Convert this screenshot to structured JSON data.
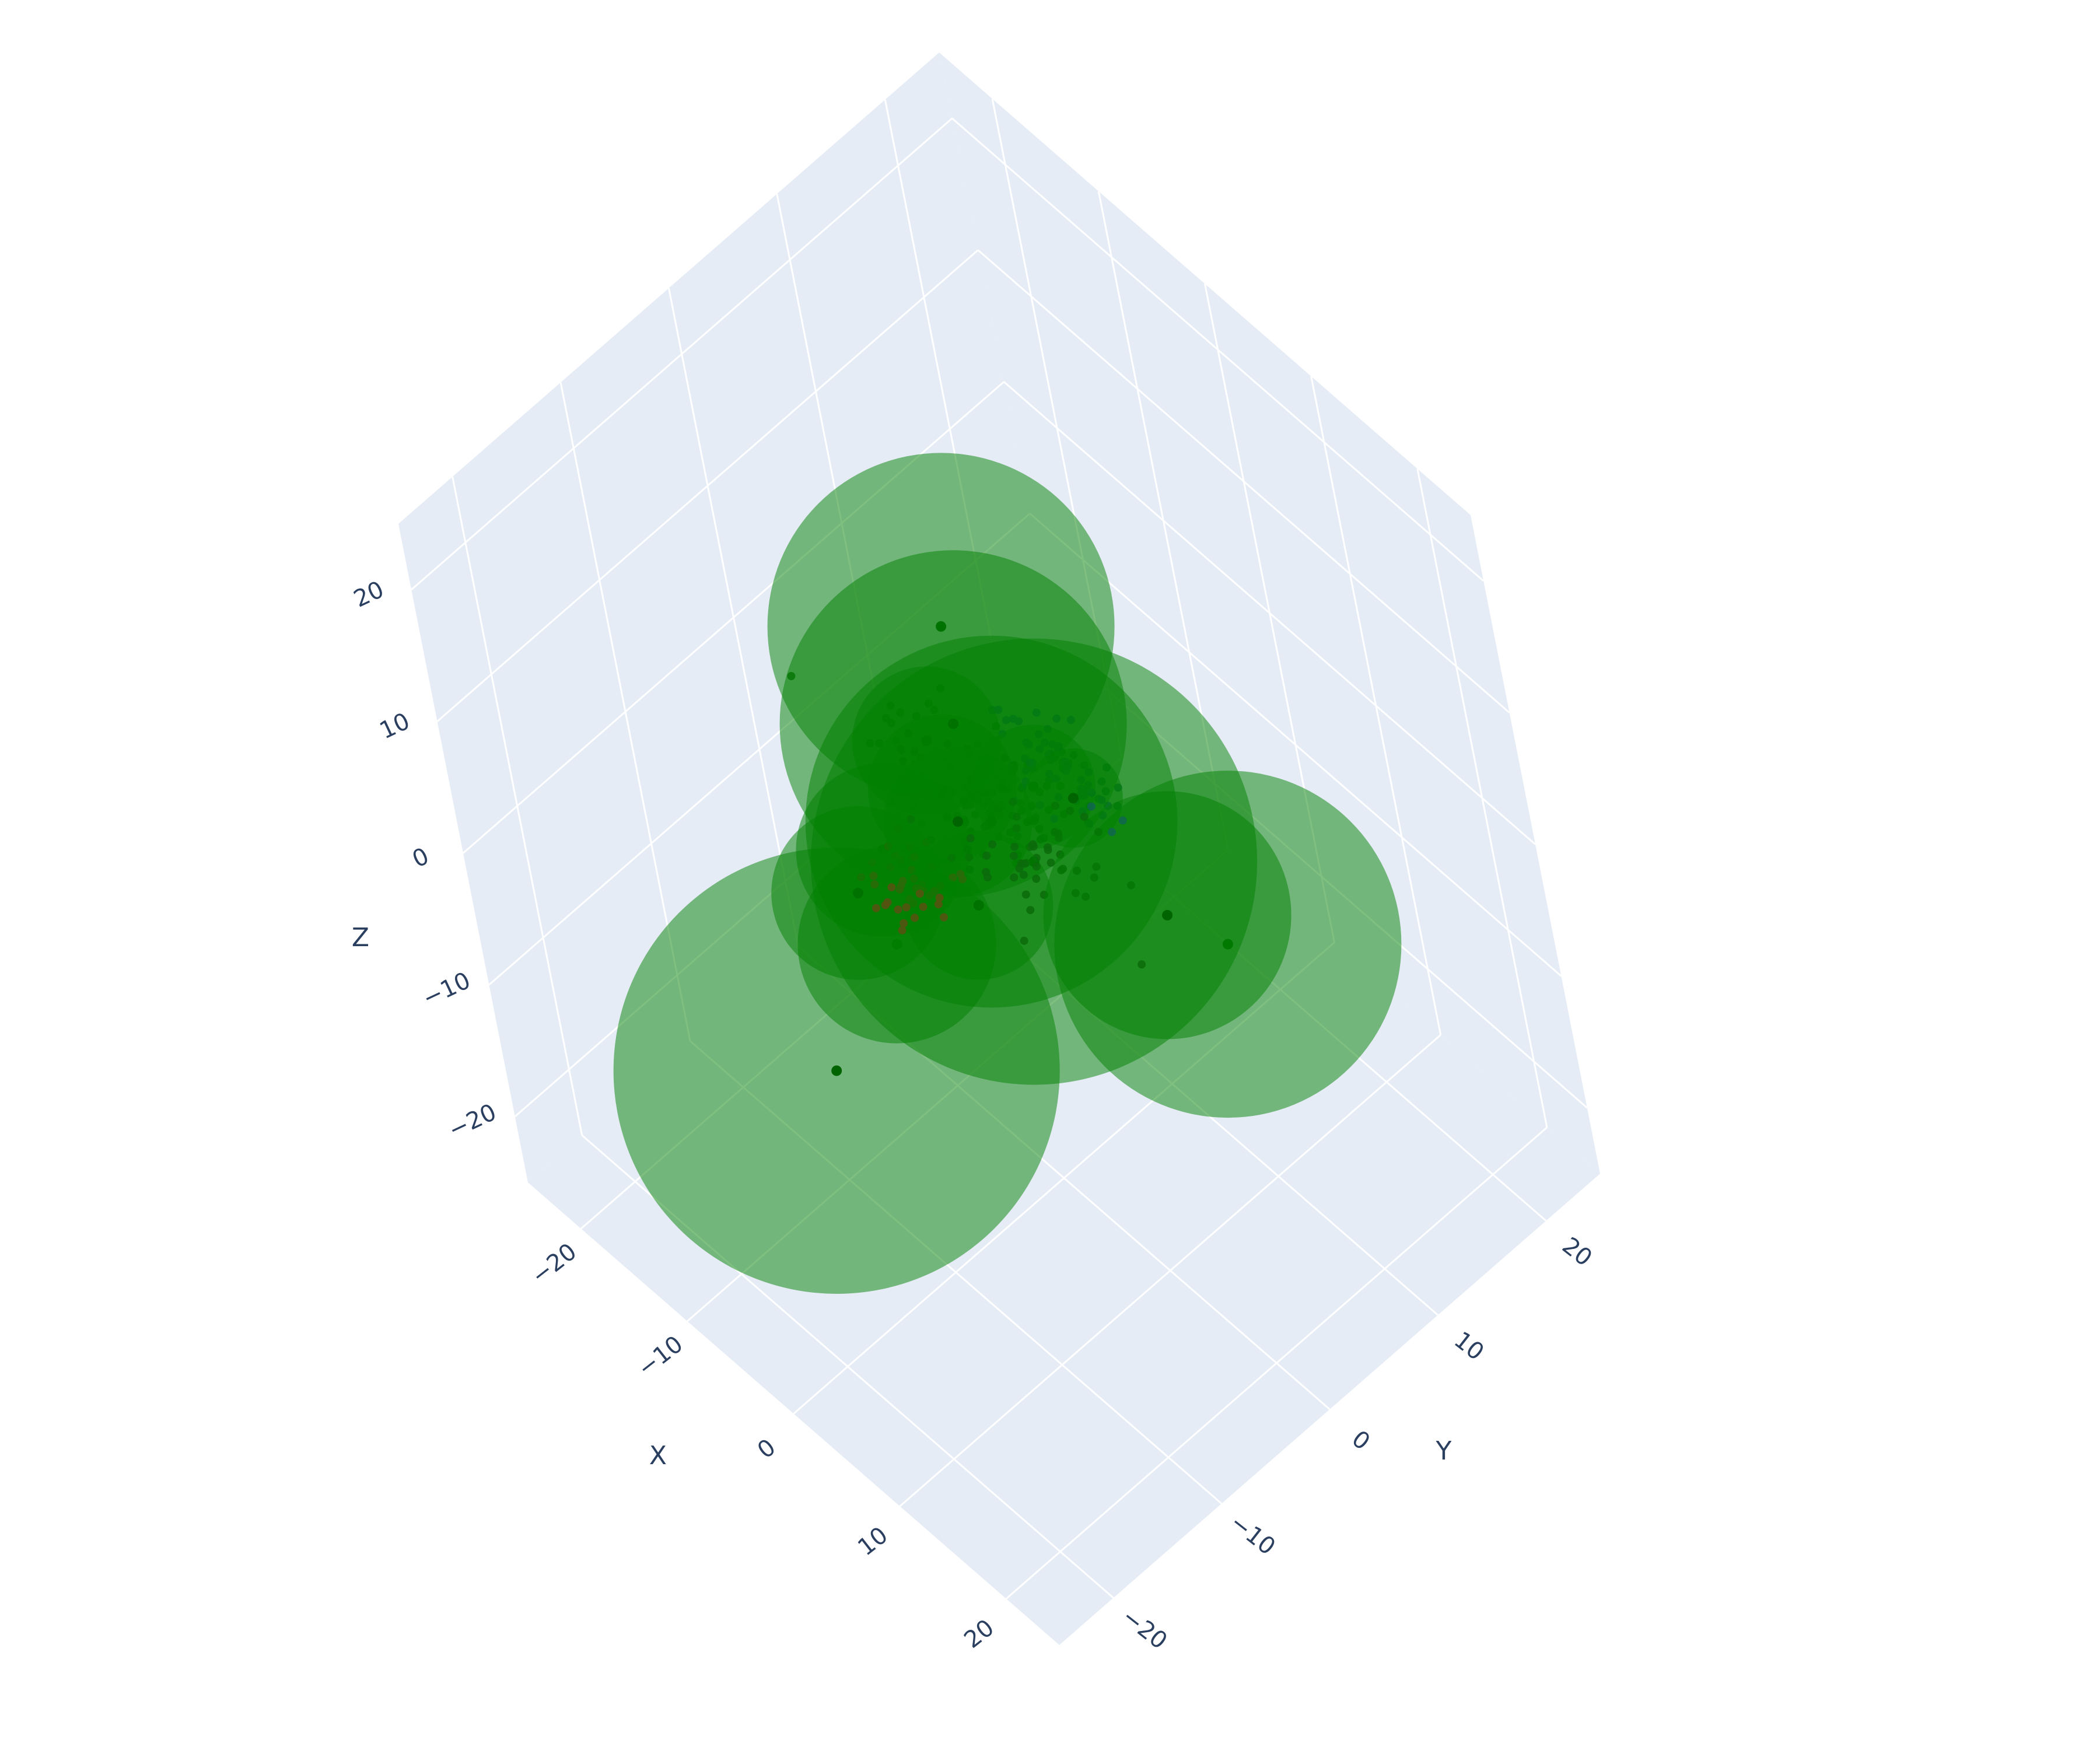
{
  "colors": {
    "pane": "#e5ecf6",
    "grid": "#ffffff",
    "text": "#2a3f5f",
    "sphere": "#008000",
    "cluster_red": "#b22222",
    "cluster_blue": "#1f4e9e"
  },
  "chart_data": {
    "type": "scatter3d",
    "title": "",
    "axes": {
      "x": {
        "title": "X",
        "ticks": [
          "−20",
          "−10",
          "0",
          "10",
          "20"
        ],
        "range": [
          -25,
          25
        ]
      },
      "y": {
        "title": "Y",
        "ticks": [
          "−20",
          "−10",
          "0",
          "10",
          "20"
        ],
        "range": [
          -25,
          25
        ]
      },
      "z": {
        "title": "Z",
        "ticks": [
          "−20",
          "−10",
          "0",
          "10",
          "20"
        ],
        "range": [
          -25,
          25
        ]
      }
    },
    "grid": true,
    "series": [
      {
        "type": "spheres",
        "color": "#008000",
        "opacity": 0.5,
        "items": [
          {
            "x": -1.0,
            "y": -1.0,
            "z": 9.5,
            "r": 7
          },
          {
            "x": -11.0,
            "y": 6.5,
            "z": 4.5,
            "r": 7
          },
          {
            "x": 14.0,
            "y": 2.5,
            "z": 3.0,
            "r": 5
          },
          {
            "x": 8.0,
            "y": 11.0,
            "z": -9.5,
            "r": 7
          },
          {
            "x": -4.0,
            "y": -13.5,
            "z": -10.0,
            "r": 9
          },
          {
            "x": 1.5,
            "y": 1.5,
            "z": -1.0,
            "r": 9
          },
          {
            "x": -1.0,
            "y": 0.5,
            "z": 1.0,
            "r": 7.5
          },
          {
            "x": -0.5,
            "y": -2.5,
            "z": 3.5,
            "r": 3
          },
          {
            "x": 0.0,
            "y": -2.5,
            "z": -2.5,
            "r": 3
          },
          {
            "x": -8.0,
            "y": 1.5,
            "z": 1.5,
            "r": 3
          },
          {
            "x": -8.0,
            "y": 2.0,
            "z": -2.5,
            "r": 3
          },
          {
            "x": -7.5,
            "y": -4.0,
            "z": -2.5,
            "r": 3.5
          },
          {
            "x": -5.5,
            "y": -8.0,
            "z": -1.5,
            "r": 3.5
          },
          {
            "x": -8.0,
            "y": -4.0,
            "z": -10.0,
            "r": 4
          },
          {
            "x": 4.5,
            "y": 3.5,
            "z": 4.5,
            "r": 2
          },
          {
            "x": -0.5,
            "y": 4.0,
            "z": 1.5,
            "r": 2.5
          }
        ]
      },
      {
        "type": "cluster",
        "color": "#1f4e9e",
        "center": {
          "x": 0.5,
          "y": 5.5,
          "z": 2.5
        },
        "spread": {
          "x": 6,
          "y": 2.5,
          "z": 1.2
        },
        "count": 70
      },
      {
        "type": "cluster",
        "color": "#b22222",
        "center": {
          "x": -3.5,
          "y": -5.0,
          "z": -1.5
        },
        "spread": {
          "x": 3.5,
          "y": 3,
          "z": 1.5
        },
        "count": 45
      },
      {
        "type": "cluster",
        "color": "#0b6b0b",
        "center": {
          "x": -1.5,
          "y": 1.0,
          "z": 1.0
        },
        "spread": {
          "x": 9,
          "y": 4,
          "z": 2.5
        },
        "count": 170
      }
    ]
  }
}
